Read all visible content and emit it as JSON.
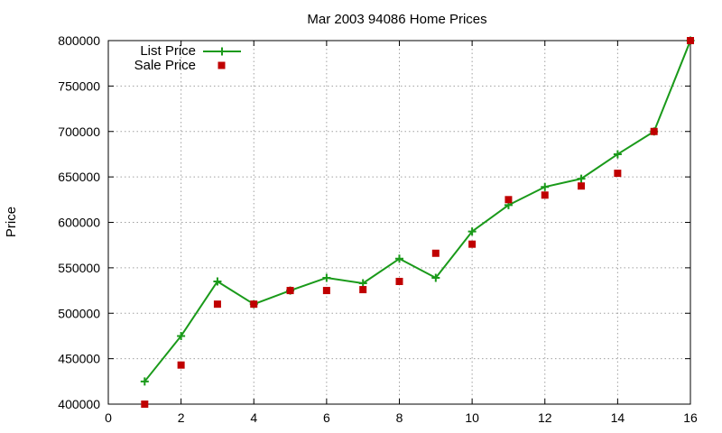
{
  "chart_data": {
    "type": "line",
    "title": "Mar 2003 94086 Home Prices",
    "xlabel": "",
    "ylabel": "Price",
    "xlim": [
      0,
      16
    ],
    "ylim": [
      400000,
      800000
    ],
    "xticks": [
      0,
      2,
      4,
      6,
      8,
      10,
      12,
      14,
      16
    ],
    "yticks": [
      400000,
      450000,
      500000,
      550000,
      600000,
      650000,
      700000,
      750000,
      800000
    ],
    "xtick_labels": [
      "0",
      "2",
      "4",
      "6",
      "8",
      "10",
      "12",
      "14",
      "16"
    ],
    "ytick_labels": [
      "400000",
      "450000",
      "500000",
      "550000",
      "600000",
      "650000",
      "700000",
      "750000",
      "800000"
    ],
    "grid": true,
    "legend_position": "top-left",
    "series": [
      {
        "name": "List Price",
        "style": "linespoints",
        "marker": "plus",
        "color": "#1a9a1a",
        "x": [
          1,
          2,
          3,
          4,
          5,
          6,
          7,
          8,
          9,
          10,
          11,
          12,
          13,
          14,
          15,
          16
        ],
        "y": [
          425000,
          475000,
          535000,
          510000,
          525000,
          539000,
          533000,
          560000,
          539000,
          590000,
          619000,
          639000,
          648000,
          675000,
          700000,
          800000
        ]
      },
      {
        "name": "Sale Price",
        "style": "points",
        "marker": "square",
        "color": "#c00000",
        "x": [
          1,
          2,
          3,
          4,
          5,
          6,
          7,
          8,
          9,
          10,
          11,
          12,
          13,
          14,
          15,
          16
        ],
        "y": [
          400000,
          443000,
          510000,
          510000,
          525000,
          525000,
          526000,
          535000,
          566000,
          576000,
          625000,
          630000,
          640000,
          654000,
          700000,
          800000
        ]
      }
    ]
  }
}
